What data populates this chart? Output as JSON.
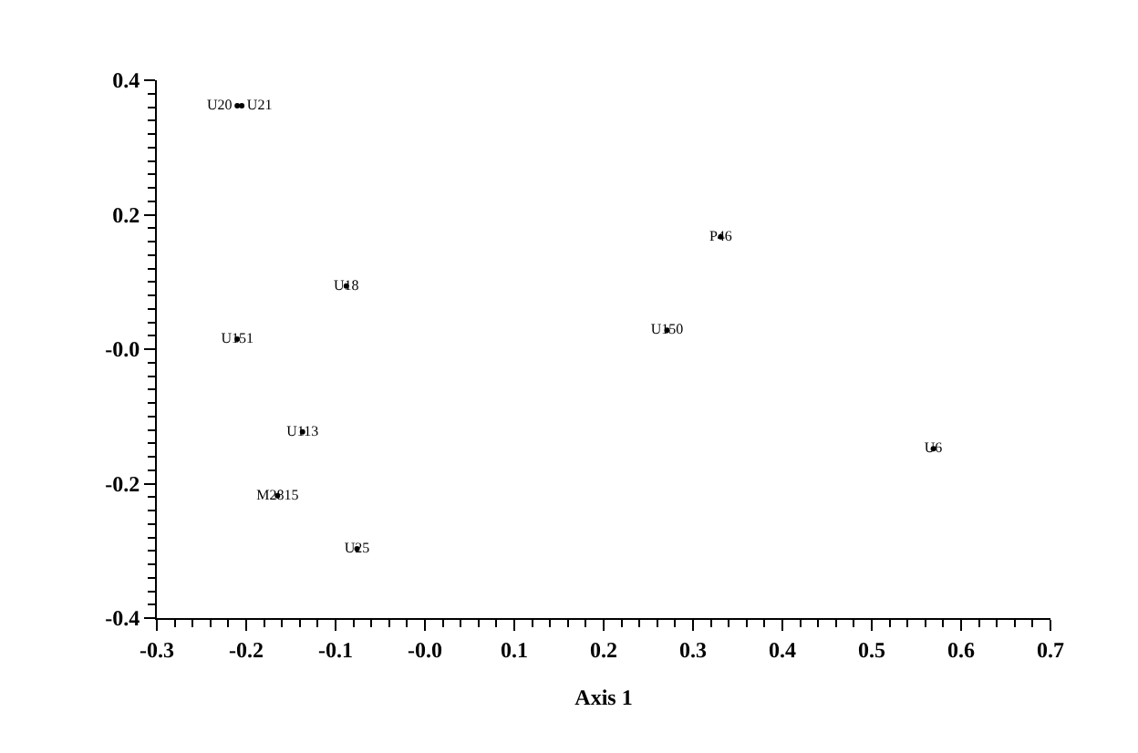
{
  "chart_data": {
    "type": "scatter",
    "xlabel": "Axis 1",
    "marker": "circle",
    "xlim": [
      -0.3,
      0.7
    ],
    "ylim": [
      -0.4,
      0.4
    ],
    "xticks": [
      -0.3,
      -0.2,
      -0.1,
      {
        "value": 0,
        "label": "-0.0"
      },
      0.1,
      0.2,
      0.3,
      0.4,
      0.5,
      0.6,
      0.7
    ],
    "yticks": [
      -0.4,
      -0.2,
      {
        "value": 0,
        "label": "-0.0"
      },
      0.2,
      0.4
    ],
    "series": [
      {
        "color": "#000000",
        "x": [
          -0.21,
          -0.205,
          -0.088,
          -0.21,
          -0.137,
          -0.165,
          -0.076,
          0.331,
          0.271,
          0.569
        ],
        "values": [
          0.362,
          0.362,
          0.094,
          0.015,
          -0.123,
          -0.218,
          -0.297,
          0.167,
          0.028,
          -0.148
        ],
        "value_labels": [
          "U20",
          "U21",
          "U18",
          "U151",
          "U113",
          "M2815",
          "U25",
          "P46",
          "U150",
          "U6"
        ]
      }
    ]
  }
}
